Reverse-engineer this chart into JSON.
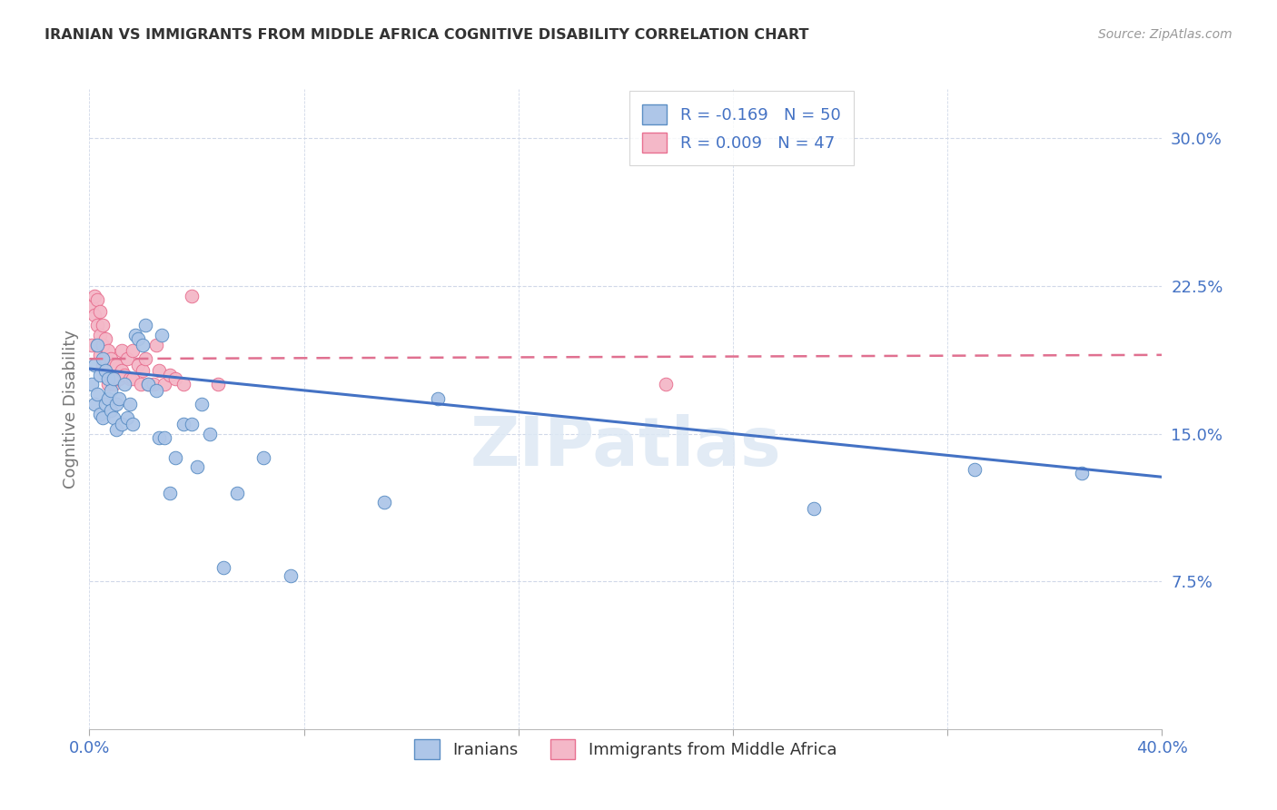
{
  "title": "IRANIAN VS IMMIGRANTS FROM MIDDLE AFRICA COGNITIVE DISABILITY CORRELATION CHART",
  "source": "Source: ZipAtlas.com",
  "ylabel": "Cognitive Disability",
  "xmin": 0.0,
  "xmax": 0.4,
  "ymin": 0.0,
  "ymax": 0.325,
  "yticks": [
    0.075,
    0.15,
    0.225,
    0.3
  ],
  "ytick_labels": [
    "7.5%",
    "15.0%",
    "22.5%",
    "30.0%"
  ],
  "xtick_positions": [
    0.0,
    0.08,
    0.16,
    0.24,
    0.32,
    0.4
  ],
  "legend_r1": "R = -0.169   N = 50",
  "legend_r2": "R = 0.009   N = 47",
  "blue_fill": "#aec6e8",
  "pink_fill": "#f4b8c8",
  "blue_edge": "#5b8ec4",
  "pink_edge": "#e87090",
  "blue_line": "#4472c4",
  "pink_line": "#e07090",
  "axis_color": "#4472c4",
  "grid_color": "#d0d8e8",
  "iranians_x": [
    0.001,
    0.002,
    0.002,
    0.003,
    0.003,
    0.004,
    0.004,
    0.005,
    0.005,
    0.006,
    0.006,
    0.007,
    0.007,
    0.008,
    0.008,
    0.009,
    0.009,
    0.01,
    0.01,
    0.011,
    0.012,
    0.013,
    0.014,
    0.015,
    0.016,
    0.017,
    0.018,
    0.02,
    0.021,
    0.022,
    0.025,
    0.026,
    0.027,
    0.028,
    0.03,
    0.032,
    0.035,
    0.038,
    0.04,
    0.042,
    0.045,
    0.05,
    0.055,
    0.065,
    0.075,
    0.11,
    0.13,
    0.27,
    0.33,
    0.37
  ],
  "iranians_y": [
    0.175,
    0.185,
    0.165,
    0.195,
    0.17,
    0.18,
    0.16,
    0.188,
    0.158,
    0.182,
    0.165,
    0.178,
    0.168,
    0.162,
    0.172,
    0.178,
    0.158,
    0.165,
    0.152,
    0.168,
    0.155,
    0.175,
    0.158,
    0.165,
    0.155,
    0.2,
    0.198,
    0.195,
    0.205,
    0.175,
    0.172,
    0.148,
    0.2,
    0.148,
    0.12,
    0.138,
    0.155,
    0.155,
    0.133,
    0.165,
    0.15,
    0.082,
    0.12,
    0.138,
    0.078,
    0.115,
    0.168,
    0.112,
    0.132,
    0.13
  ],
  "africa_x": [
    0.001,
    0.001,
    0.002,
    0.002,
    0.003,
    0.003,
    0.003,
    0.004,
    0.004,
    0.004,
    0.005,
    0.005,
    0.005,
    0.006,
    0.006,
    0.007,
    0.007,
    0.007,
    0.008,
    0.008,
    0.009,
    0.009,
    0.01,
    0.01,
    0.011,
    0.012,
    0.012,
    0.013,
    0.014,
    0.015,
    0.016,
    0.016,
    0.018,
    0.019,
    0.02,
    0.021,
    0.022,
    0.024,
    0.025,
    0.026,
    0.028,
    0.03,
    0.032,
    0.035,
    0.038,
    0.048,
    0.215
  ],
  "africa_y": [
    0.195,
    0.215,
    0.22,
    0.21,
    0.218,
    0.205,
    0.195,
    0.212,
    0.2,
    0.19,
    0.205,
    0.195,
    0.185,
    0.198,
    0.188,
    0.192,
    0.182,
    0.175,
    0.188,
    0.178,
    0.185,
    0.175,
    0.185,
    0.178,
    0.178,
    0.192,
    0.182,
    0.18,
    0.188,
    0.178,
    0.178,
    0.192,
    0.185,
    0.175,
    0.182,
    0.188,
    0.175,
    0.175,
    0.195,
    0.182,
    0.175,
    0.18,
    0.178,
    0.175,
    0.22,
    0.175,
    0.175
  ],
  "blue_trend_x": [
    0.0,
    0.4
  ],
  "blue_trend_y": [
    0.183,
    0.128
  ],
  "pink_trend_x": [
    0.0,
    0.4
  ],
  "pink_trend_y": [
    0.188,
    0.19
  ]
}
